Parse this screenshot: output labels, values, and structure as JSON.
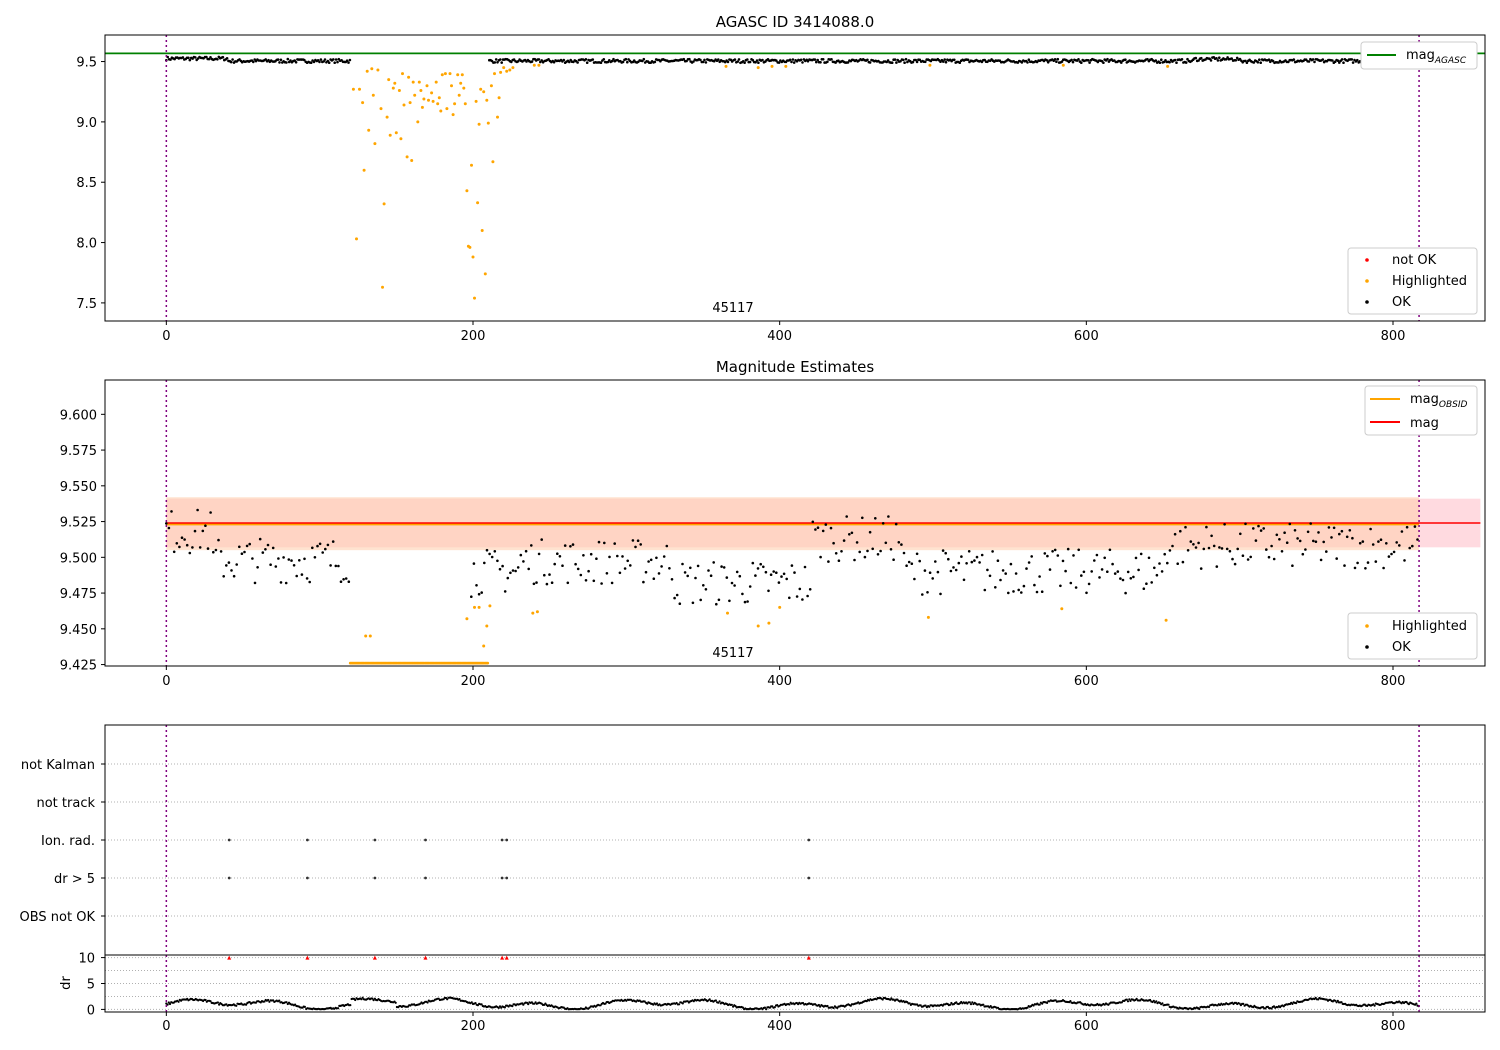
{
  "colors": {
    "ok": "#000000",
    "highlighted": "#ffa500",
    "not_ok": "#ff0000",
    "agasc_line": "#008000",
    "obsid_line": "#ffa500",
    "mag_line": "#ff0000",
    "band": "#ffb6c1",
    "obsid_band": "#ffd0b0",
    "vline": "#800080"
  },
  "chart_data": [
    {
      "type": "scatter",
      "title": "AGASC ID 3414088.0",
      "xlim": [
        -40,
        860
      ],
      "ylim": [
        7.35,
        9.72
      ],
      "xticks": [
        0,
        200,
        400,
        600,
        800
      ],
      "yticks": [
        7.5,
        8.0,
        8.5,
        9.0,
        9.5
      ],
      "ytick_labels": [
        "7.5",
        "8.0",
        "8.5",
        "9.0",
        "9.5"
      ],
      "grid": false,
      "obsid_label": "45117",
      "vertical_lines_x": [
        0,
        817
      ],
      "hline": {
        "name": "mag_AGASC",
        "y": 9.568,
        "color": "green"
      },
      "legend_upper": {
        "position": "upper-right",
        "entries": [
          {
            "label": "mag",
            "sub": "AGASC"
          }
        ]
      },
      "legend_lower": {
        "position": "lower-right",
        "entries": [
          "not OK",
          "Highlighted",
          "OK"
        ]
      },
      "ok_baseline": {
        "x_range": [
          0,
          817
        ],
        "level": 9.505,
        "scatter": 0.015,
        "excluded_x": [
          120,
          210
        ]
      },
      "highlighted_points": [
        [
          122,
          9.27
        ],
        [
          124,
          8.03
        ],
        [
          126,
          9.27
        ],
        [
          128,
          9.16
        ],
        [
          129,
          8.6
        ],
        [
          131,
          9.42
        ],
        [
          132,
          8.93
        ],
        [
          134,
          9.44
        ],
        [
          135,
          9.22
        ],
        [
          136,
          8.82
        ],
        [
          138,
          9.43
        ],
        [
          140,
          9.11
        ],
        [
          141,
          7.63
        ],
        [
          142,
          8.32
        ],
        [
          144,
          9.04
        ],
        [
          145,
          9.35
        ],
        [
          146,
          8.89
        ],
        [
          148,
          9.28
        ],
        [
          149,
          9.32
        ],
        [
          150,
          8.91
        ],
        [
          152,
          9.26
        ],
        [
          153,
          8.86
        ],
        [
          154,
          9.4
        ],
        [
          155,
          9.14
        ],
        [
          157,
          8.71
        ],
        [
          158,
          9.37
        ],
        [
          159,
          9.16
        ],
        [
          160,
          8.68
        ],
        [
          161,
          9.33
        ],
        [
          162,
          9.22
        ],
        [
          164,
          9.0
        ],
        [
          165,
          9.33
        ],
        [
          166,
          9.26
        ],
        [
          167,
          9.12
        ],
        [
          168,
          9.19
        ],
        [
          170,
          9.3
        ],
        [
          171,
          9.18
        ],
        [
          173,
          9.24
        ],
        [
          174,
          9.17
        ],
        [
          176,
          9.33
        ],
        [
          177,
          9.15
        ],
        [
          178,
          9.2
        ],
        [
          179,
          9.09
        ],
        [
          180,
          9.39
        ],
        [
          182,
          9.4
        ],
        [
          183,
          9.11
        ],
        [
          185,
          9.4
        ],
        [
          186,
          9.3
        ],
        [
          187,
          9.06
        ],
        [
          188,
          9.15
        ],
        [
          190,
          9.39
        ],
        [
          191,
          9.22
        ],
        [
          192,
          9.32
        ],
        [
          193,
          9.39
        ],
        [
          194,
          9.28
        ],
        [
          195,
          9.15
        ],
        [
          196,
          8.43
        ],
        [
          197,
          7.97
        ],
        [
          198,
          7.96
        ],
        [
          199,
          8.64
        ],
        [
          200,
          7.88
        ],
        [
          201,
          7.54
        ],
        [
          202,
          9.17
        ],
        [
          203,
          8.33
        ],
        [
          204,
          8.98
        ],
        [
          205,
          9.27
        ],
        [
          206,
          8.1
        ],
        [
          207,
          9.25
        ],
        [
          208,
          7.74
        ],
        [
          209,
          9.18
        ],
        [
          210,
          8.99
        ],
        [
          212,
          9.3
        ],
        [
          213,
          8.67
        ],
        [
          214,
          9.4
        ],
        [
          216,
          9.04
        ],
        [
          217,
          9.2
        ],
        [
          218,
          9.41
        ],
        [
          220,
          9.45
        ],
        [
          222,
          9.42
        ],
        [
          224,
          9.43
        ],
        [
          226,
          9.45
        ],
        [
          240,
          9.47
        ],
        [
          243,
          9.47
        ],
        [
          365,
          9.46
        ],
        [
          386,
          9.45
        ],
        [
          395,
          9.46
        ],
        [
          404,
          9.46
        ],
        [
          498,
          9.47
        ],
        [
          585,
          9.47
        ],
        [
          653,
          9.46
        ]
      ]
    },
    {
      "type": "scatter",
      "title": "Magnitude Estimates",
      "xlim": [
        -40,
        860
      ],
      "ylim": [
        9.424,
        9.624
      ],
      "xticks": [
        0,
        200,
        400,
        600,
        800
      ],
      "yticks": [
        9.425,
        9.45,
        9.475,
        9.5,
        9.525,
        9.55,
        9.575,
        9.6
      ],
      "ytick_labels": [
        "9.425",
        "9.450",
        "9.475",
        "9.500",
        "9.525",
        "9.550",
        "9.575",
        "9.600"
      ],
      "grid": false,
      "obsid_label": "45117",
      "vertical_lines_x": [
        0,
        817
      ],
      "mag": 9.524,
      "mag_band": [
        9.507,
        9.541
      ],
      "mag_band_x": [
        0,
        857
      ],
      "mag_obsid": 9.523,
      "mag_obsid_band": [
        9.505,
        9.542
      ],
      "mag_obsid_x": [
        0,
        817
      ],
      "legend_upper": {
        "position": "upper-right",
        "entries": [
          {
            "label": "mag",
            "sub": "OBSID"
          },
          {
            "label": "mag",
            "sub": ""
          }
        ]
      },
      "legend_lower": {
        "position": "lower-right",
        "entries": [
          "Highlighted",
          "OK"
        ]
      },
      "highlighted_points": [
        [
          196,
          9.457
        ],
        [
          201,
          9.465
        ],
        [
          204,
          9.465
        ],
        [
          207,
          9.438
        ],
        [
          209,
          9.452
        ],
        [
          211,
          9.466
        ],
        [
          239,
          9.461
        ],
        [
          242,
          9.462
        ],
        [
          366,
          9.461
        ],
        [
          386,
          9.452
        ],
        [
          393,
          9.454
        ],
        [
          400,
          9.465
        ],
        [
          497,
          9.458
        ],
        [
          584,
          9.464
        ],
        [
          652,
          9.456
        ]
      ],
      "floor_highlighted_x_range": [
        120,
        210
      ],
      "floor_y": 9.426
    },
    {
      "type": "scatter",
      "title": "",
      "xlim": [
        -40,
        860
      ],
      "flag_labels": [
        "not Kalman",
        "not track",
        "Ion. rad.",
        "dr > 5",
        "OBS not OK"
      ],
      "vertical_lines_x": [
        0,
        817
      ],
      "flag_points": {
        "Ion. rad.": [
          41,
          92,
          136,
          169,
          219,
          222,
          419
        ],
        "dr > 5": [
          41,
          92,
          136,
          169,
          219,
          222,
          419
        ]
      },
      "grid": "dotted-horizontal"
    },
    {
      "type": "scatter",
      "title": "",
      "ylabel": "dr",
      "xlim": [
        -40,
        860
      ],
      "ylim": [
        -0.5,
        10.5
      ],
      "xticks": [
        0,
        200,
        400,
        600,
        800
      ],
      "yticks": [
        0,
        5,
        10
      ],
      "ytick_labels": [
        "0",
        "5",
        "10"
      ],
      "grid": "dotted-horizontal",
      "vertical_lines_x": [
        0,
        817
      ],
      "clipped_markers_x": [
        41,
        92,
        136,
        169,
        219,
        222,
        419
      ],
      "clipped_marker_y": 10
    }
  ]
}
